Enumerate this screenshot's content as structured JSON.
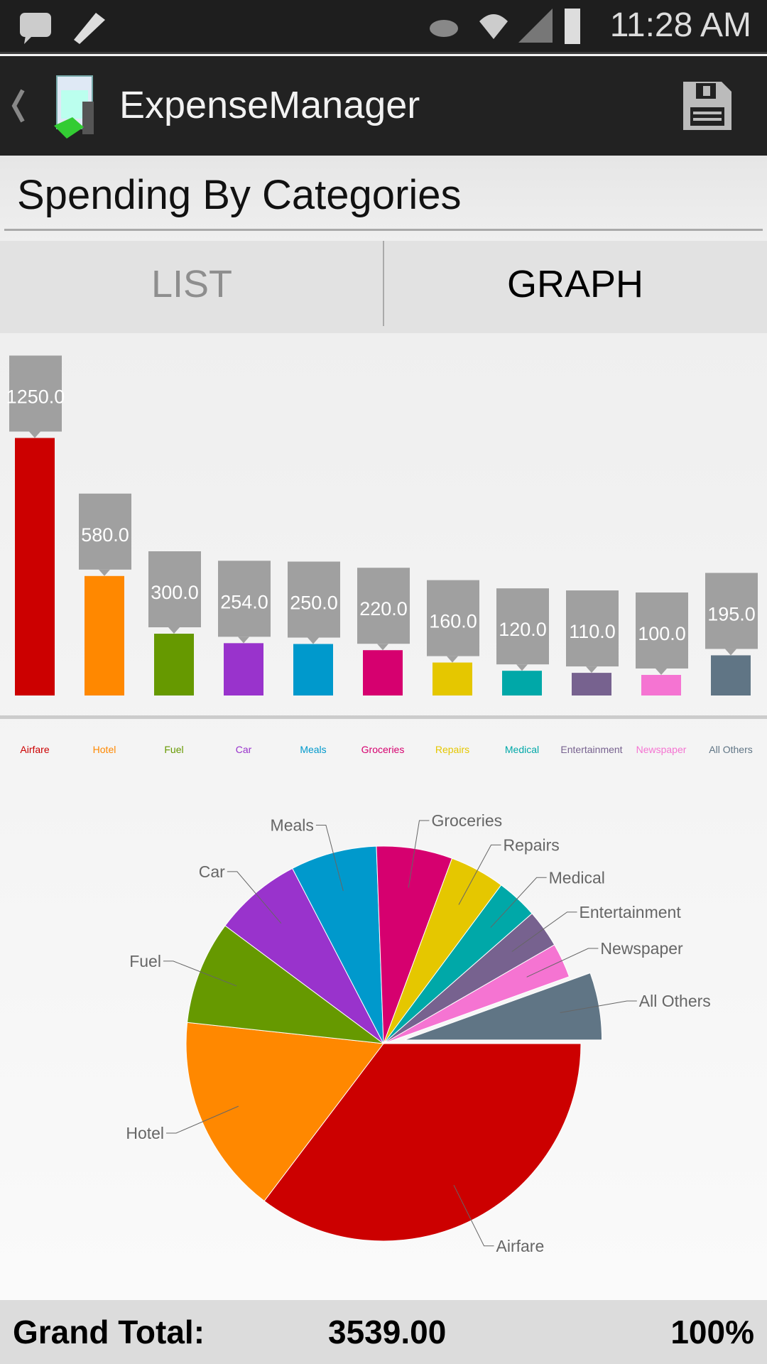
{
  "status_bar": {
    "time": "11:28 AM",
    "icons": [
      "bbm-icon",
      "pencil-icon",
      "eye-icon",
      "wifi-icon",
      "signal-icon",
      "battery-charging-icon"
    ]
  },
  "app_bar": {
    "title": "ExpenseManager",
    "icons": [
      "back-chevron-icon",
      "app-logo-icon",
      "save-floppy-icon"
    ]
  },
  "page": {
    "title": "Spending By Categories"
  },
  "tabs": [
    {
      "label": "LIST",
      "active": false
    },
    {
      "label": "GRAPH",
      "active": true
    }
  ],
  "chart_data": [
    {
      "type": "bar",
      "categories": [
        "Airfare",
        "Hotel",
        "Fuel",
        "Car",
        "Meals",
        "Groceries",
        "Repairs",
        "Medical",
        "Entertainment",
        "Newspaper",
        "All Others"
      ],
      "values": [
        1250.0,
        580.0,
        300.0,
        254.0,
        250.0,
        220.0,
        160.0,
        120.0,
        110.0,
        100.0,
        195.0
      ],
      "data_labels": [
        "1250.0",
        "580.0",
        "300.0",
        "254.0",
        "250.0",
        "220.0",
        "160.0",
        "120.0",
        "110.0",
        "100.0",
        "195.0"
      ],
      "colors": [
        "#cc0000",
        "#ff8800",
        "#669900",
        "#9933cc",
        "#0099cc",
        "#d6006f",
        "#e5c700",
        "#00a8a8",
        "#77628f",
        "#f574d2",
        "#607585"
      ],
      "grid": false
    },
    {
      "type": "pie",
      "categories": [
        "Airfare",
        "Hotel",
        "Fuel",
        "Car",
        "Meals",
        "Groceries",
        "Repairs",
        "Medical",
        "Entertainment",
        "Newspaper",
        "All Others"
      ],
      "values": [
        1250.0,
        580.0,
        300.0,
        254.0,
        250.0,
        220.0,
        160.0,
        120.0,
        110.0,
        100.0,
        195.0
      ],
      "exploded": "All Others"
    }
  ],
  "footer": {
    "label": "Grand Total:",
    "total": "3539.00",
    "percent": "100%"
  }
}
